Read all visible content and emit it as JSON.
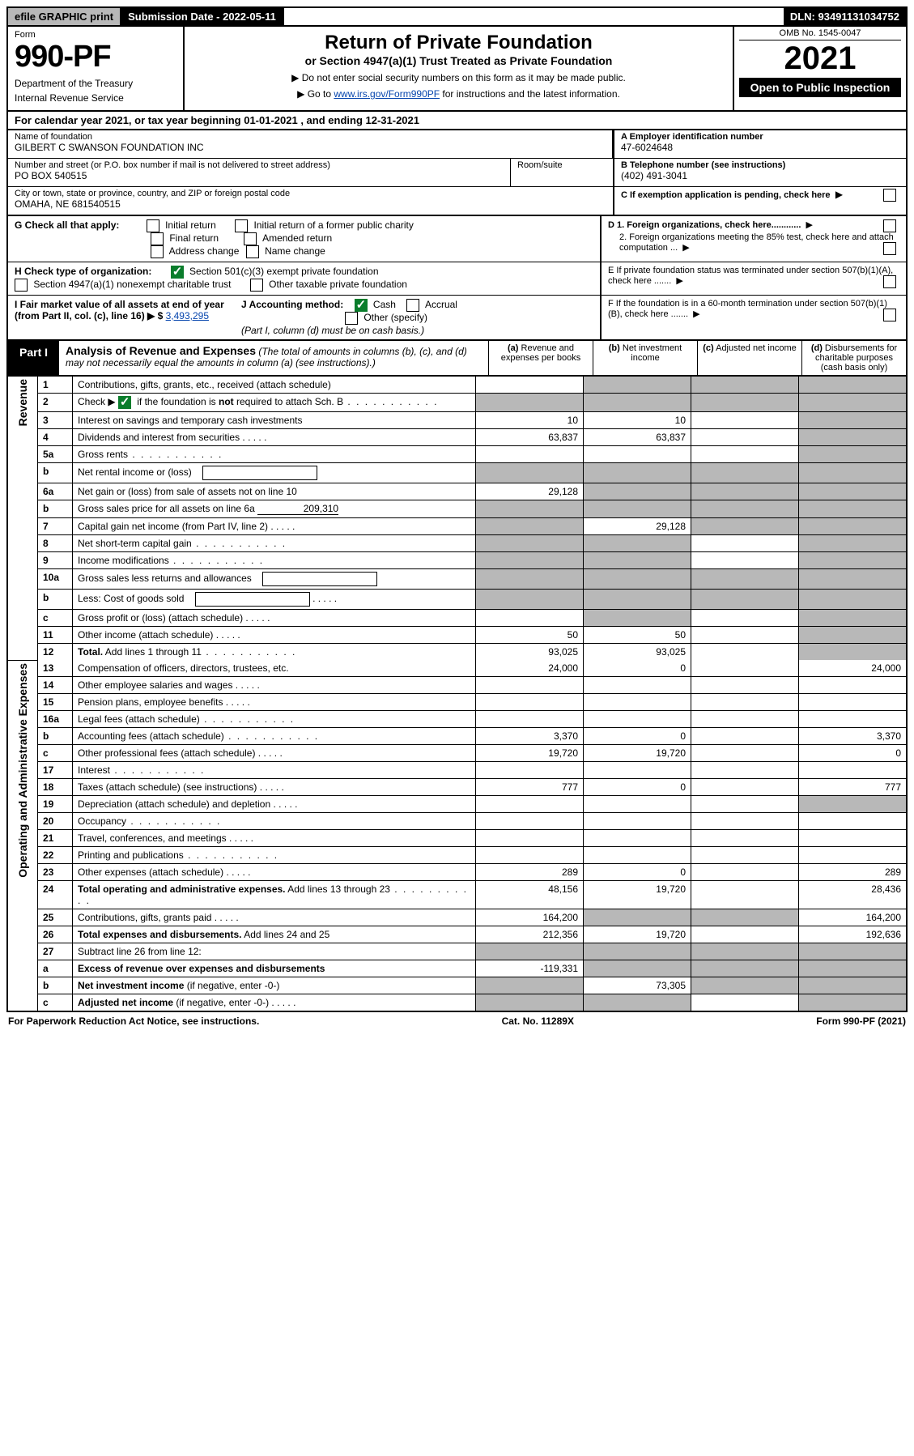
{
  "topbar": {
    "efile": "efile GRAPHIC print",
    "subdate_label": "Submission Date - 2022-05-11",
    "dln": "DLN: 93491131034752"
  },
  "header": {
    "form_label": "Form",
    "form_no": "990-PF",
    "dept1": "Department of the Treasury",
    "dept2": "Internal Revenue Service",
    "title": "Return of Private Foundation",
    "subtitle": "or Section 4947(a)(1) Trust Treated as Private Foundation",
    "note1": "▶ Do not enter social security numbers on this form as it may be made public.",
    "note2_pre": "▶ Go to ",
    "note2_link": "www.irs.gov/Form990PF",
    "note2_post": " for instructions and the latest information.",
    "omb": "OMB No. 1545-0047",
    "year": "2021",
    "open": "Open to Public Inspection"
  },
  "calyear": "For calendar year 2021, or tax year beginning 01-01-2021            , and ending 12-31-2021",
  "entity": {
    "name_label": "Name of foundation",
    "name": "GILBERT C SWANSON FOUNDATION INC",
    "addr_label": "Number and street (or P.O. box number if mail is not delivered to street address)",
    "addr": "PO BOX 540515",
    "room_label": "Room/suite",
    "city_label": "City or town, state or province, country, and ZIP or foreign postal code",
    "city": "OMAHA, NE  681540515",
    "ein_label": "A Employer identification number",
    "ein": "47-6024648",
    "phone_label": "B Telephone number (see instructions)",
    "phone": "(402) 491-3041",
    "c_label": "C If exemption application is pending, check here"
  },
  "checks": {
    "g_label": "G Check all that apply:",
    "g_opts": [
      "Initial return",
      "Initial return of a former public charity",
      "Final return",
      "Amended return",
      "Address change",
      "Name change"
    ],
    "h_label": "H Check type of organization:",
    "h_opt1": "Section 501(c)(3) exempt private foundation",
    "h_opt2": "Section 4947(a)(1) nonexempt charitable trust",
    "h_opt3": "Other taxable private foundation",
    "i_label": "I Fair market value of all assets at end of year (from Part II, col. (c), line 16) ▶ $",
    "i_val": "3,493,295",
    "j_label": "J Accounting method:",
    "j_opts": [
      "Cash",
      "Accrual"
    ],
    "j_other": "Other (specify)",
    "j_note": "(Part I, column (d) must be on cash basis.)",
    "d1": "D 1. Foreign organizations, check here............",
    "d2": "2. Foreign organizations meeting the 85% test, check here and attach computation ...",
    "e": "E   If private foundation status was terminated under section 507(b)(1)(A), check here .......",
    "f": "F   If the foundation is in a 60-month termination under section 507(b)(1)(B), check here ......."
  },
  "part1": {
    "tab": "Part I",
    "title": "Analysis of Revenue and Expenses",
    "note": "(The total of amounts in columns (b), (c), and (d) may not necessarily equal the amounts in column (a) (see instructions).)",
    "cols": {
      "a": "(a)  Revenue and expenses per books",
      "b": "(b)  Net investment income",
      "c": "(c)  Adjusted net income",
      "d": "(d)  Disbursements for charitable purposes (cash basis only)"
    }
  },
  "sections": {
    "revenue": "Revenue",
    "expenses": "Operating and Administrative Expenses"
  },
  "rows": [
    {
      "n": "1",
      "d": "Contributions, gifts, grants, etc., received (attach schedule)",
      "a": "",
      "b_grey": true,
      "c_grey": true,
      "d_grey": true
    },
    {
      "n": "2",
      "d": "Check ▶ [✓] if the foundation is <b>not</b> required to attach Sch. B",
      "check": true,
      "a_grey": true,
      "b_grey": true,
      "c_grey": true,
      "d_grey": true,
      "dots": true
    },
    {
      "n": "3",
      "d": "Interest on savings and temporary cash investments",
      "a": "10",
      "b": "10",
      "d_grey": true
    },
    {
      "n": "4",
      "d": "Dividends and interest from securities",
      "a": "63,837",
      "b": "63,837",
      "d_grey": true,
      "smalldots": true
    },
    {
      "n": "5a",
      "d": "Gross rents",
      "d_grey": true,
      "dots": true
    },
    {
      "n": "b",
      "d": "Net rental income or (loss)",
      "a_grey": true,
      "b_grey": true,
      "c_grey": true,
      "d_grey": true,
      "inline_box": true
    },
    {
      "n": "6a",
      "d": "Net gain or (loss) from sale of assets not on line 10",
      "a": "29,128",
      "b_grey": true,
      "c_grey": true,
      "d_grey": true
    },
    {
      "n": "b",
      "d": "Gross sales price for all assets on line 6a",
      "inline_val": "209,310",
      "a_grey": true,
      "b_grey": true,
      "c_grey": true,
      "d_grey": true
    },
    {
      "n": "7",
      "d": "Capital gain net income (from Part IV, line 2)",
      "a_grey": true,
      "b": "29,128",
      "c_grey": true,
      "d_grey": true,
      "smalldots": true
    },
    {
      "n": "8",
      "d": "Net short-term capital gain",
      "a_grey": true,
      "b_grey": true,
      "d_grey": true,
      "dots": true
    },
    {
      "n": "9",
      "d": "Income modifications",
      "a_grey": true,
      "b_grey": true,
      "d_grey": true,
      "dots": true
    },
    {
      "n": "10a",
      "d": "Gross sales less returns and allowances",
      "a_grey": true,
      "b_grey": true,
      "c_grey": true,
      "d_grey": true,
      "inline_box": true
    },
    {
      "n": "b",
      "d": "Less: Cost of goods sold",
      "a_grey": true,
      "b_grey": true,
      "c_grey": true,
      "d_grey": true,
      "inline_box": true,
      "smalldots": true
    },
    {
      "n": "c",
      "d": "Gross profit or (loss) (attach schedule)",
      "b_grey": true,
      "d_grey": true,
      "smalldots": true
    },
    {
      "n": "11",
      "d": "Other income (attach schedule)",
      "a": "50",
      "b": "50",
      "d_grey": true,
      "smalldots": true
    },
    {
      "n": "12",
      "d": "<b>Total.</b> Add lines 1 through 11",
      "a": "93,025",
      "b": "93,025",
      "d_grey": true,
      "dots": true
    }
  ],
  "exp_rows": [
    {
      "n": "13",
      "d": "Compensation of officers, directors, trustees, etc.",
      "a": "24,000",
      "b": "0",
      "dd": "24,000"
    },
    {
      "n": "14",
      "d": "Other employee salaries and wages",
      "smalldots": true
    },
    {
      "n": "15",
      "d": "Pension plans, employee benefits",
      "smalldots": true
    },
    {
      "n": "16a",
      "d": "Legal fees (attach schedule)",
      "dots": true
    },
    {
      "n": "b",
      "d": "Accounting fees (attach schedule)",
      "a": "3,370",
      "b": "0",
      "dd": "3,370",
      "dots": true
    },
    {
      "n": "c",
      "d": "Other professional fees (attach schedule)",
      "a": "19,720",
      "b": "19,720",
      "dd": "0",
      "smalldots": true
    },
    {
      "n": "17",
      "d": "Interest",
      "dots": true
    },
    {
      "n": "18",
      "d": "Taxes (attach schedule) (see instructions)",
      "a": "777",
      "b": "0",
      "dd": "777",
      "smalldots": true
    },
    {
      "n": "19",
      "d": "Depreciation (attach schedule) and depletion",
      "dd_grey": true,
      "smalldots": true
    },
    {
      "n": "20",
      "d": "Occupancy",
      "dots": true
    },
    {
      "n": "21",
      "d": "Travel, conferences, and meetings",
      "smalldots": true
    },
    {
      "n": "22",
      "d": "Printing and publications",
      "dots": true
    },
    {
      "n": "23",
      "d": "Other expenses (attach schedule)",
      "a": "289",
      "b": "0",
      "dd": "289",
      "smalldots": true
    },
    {
      "n": "24",
      "d": "<b>Total operating and administrative expenses.</b> Add lines 13 through 23",
      "a": "48,156",
      "b": "19,720",
      "dd": "28,436",
      "dots": true
    },
    {
      "n": "25",
      "d": "Contributions, gifts, grants paid",
      "a": "164,200",
      "b_grey": true,
      "c_grey": true,
      "dd": "164,200",
      "smalldots": true
    },
    {
      "n": "26",
      "d": "<b>Total expenses and disbursements.</b> Add lines 24 and 25",
      "a": "212,356",
      "b": "19,720",
      "dd": "192,636"
    },
    {
      "n": "27",
      "d": "Subtract line 26 from line 12:",
      "a_grey": true,
      "b_grey": true,
      "c_grey": true,
      "dd_grey": true
    },
    {
      "n": "a",
      "d": "<b>Excess of revenue over expenses and disbursements</b>",
      "a": "-119,331",
      "b_grey": true,
      "c_grey": true,
      "dd_grey": true
    },
    {
      "n": "b",
      "d": "<b>Net investment income</b> (if negative, enter -0-)",
      "a_grey": true,
      "b": "73,305",
      "c_grey": true,
      "dd_grey": true
    },
    {
      "n": "c",
      "d": "<b>Adjusted net income</b> (if negative, enter -0-)",
      "a_grey": true,
      "b_grey": true,
      "dd_grey": true,
      "smalldots": true
    }
  ],
  "footer": {
    "left": "For Paperwork Reduction Act Notice, see instructions.",
    "mid": "Cat. No. 11289X",
    "right": "Form 990-PF (2021)"
  }
}
